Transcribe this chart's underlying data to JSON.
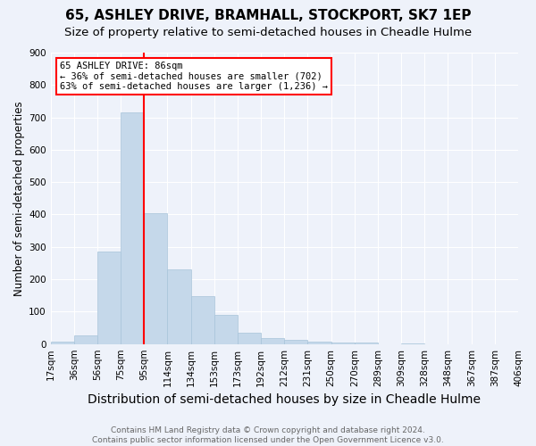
{
  "title": "65, ASHLEY DRIVE, BRAMHALL, STOCKPORT, SK7 1EP",
  "subtitle": "Size of property relative to semi-detached houses in Cheadle Hulme",
  "xlabel": "Distribution of semi-detached houses by size in Cheadle Hulme",
  "ylabel": "Number of semi-detached properties",
  "footnote": "Contains HM Land Registry data © Crown copyright and database right 2024.\nContains public sector information licensed under the Open Government Licence v3.0.",
  "bin_labels": [
    "17sqm",
    "36sqm",
    "56sqm",
    "75sqm",
    "95sqm",
    "114sqm",
    "134sqm",
    "153sqm",
    "173sqm",
    "192sqm",
    "212sqm",
    "231sqm",
    "250sqm",
    "270sqm",
    "289sqm",
    "309sqm",
    "328sqm",
    "348sqm",
    "367sqm",
    "387sqm",
    "406sqm"
  ],
  "bar_values": [
    8,
    28,
    285,
    715,
    405,
    230,
    148,
    90,
    35,
    18,
    12,
    8,
    5,
    5,
    0,
    3,
    0,
    0,
    0,
    0
  ],
  "bar_color": "#c5d8ea",
  "bar_edgecolor": "#a8c4da",
  "marker_bin_index": 3,
  "marker_label": "65 ASHLEY DRIVE: 86sqm",
  "annotation_line1": "← 36% of semi-detached houses are smaller (702)",
  "annotation_line2": "63% of semi-detached houses are larger (1,236) →",
  "annotation_box_color": "white",
  "annotation_box_edgecolor": "red",
  "marker_line_color": "red",
  "ylim": [
    0,
    900
  ],
  "background_color": "#eef2fa",
  "grid_color": "white",
  "title_fontsize": 11,
  "subtitle_fontsize": 9.5,
  "xlabel_fontsize": 10,
  "ylabel_fontsize": 8.5,
  "tick_fontsize": 7.5,
  "footnote_fontsize": 6.5
}
